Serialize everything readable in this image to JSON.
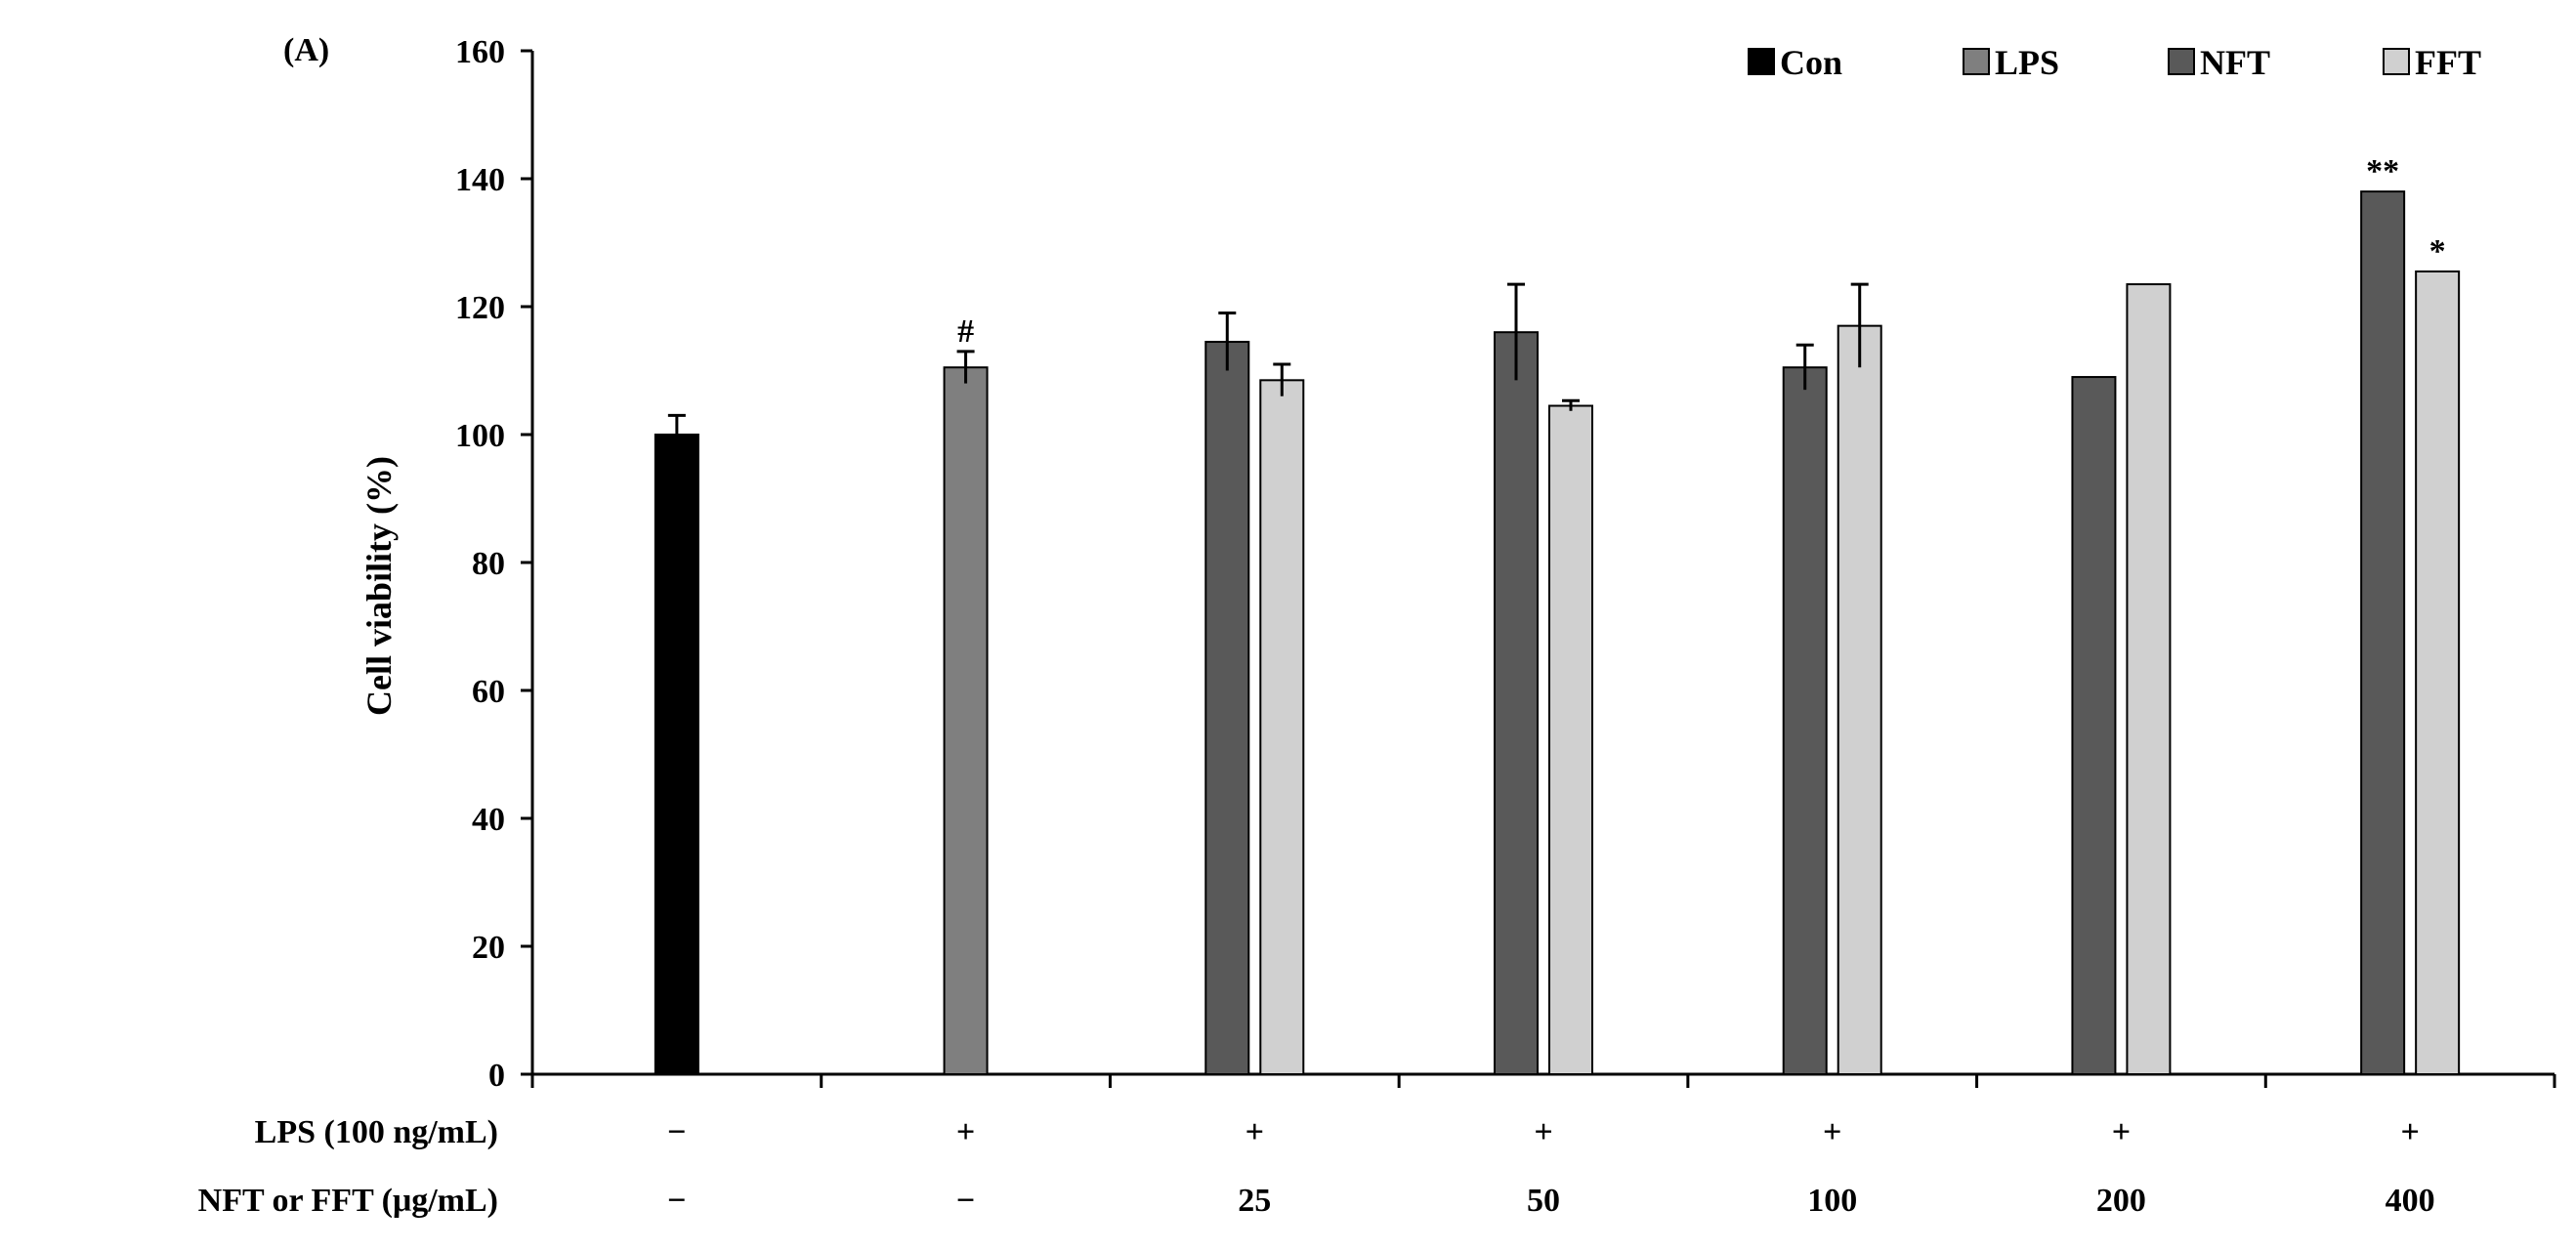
{
  "chart_data": {
    "type": "bar",
    "panel_label": "(A)",
    "title": "",
    "ylabel": "Cell viability (%)",
    "ylim": [
      0,
      160
    ],
    "yticks": [
      0,
      20,
      40,
      60,
      80,
      100,
      120,
      140,
      160
    ],
    "grid": false,
    "legend_position": "top-right",
    "groups": [
      {
        "lps": "−",
        "dose": "−"
      },
      {
        "lps": "+",
        "dose": "−"
      },
      {
        "lps": "+",
        "dose": "25"
      },
      {
        "lps": "+",
        "dose": "50"
      },
      {
        "lps": "+",
        "dose": "100"
      },
      {
        "lps": "+",
        "dose": "200"
      },
      {
        "lps": "+",
        "dose": "400"
      }
    ],
    "row_labels": {
      "lps": "LPS (100 ng/mL)",
      "dose": "NFT or FFT (μg/mL)"
    },
    "series": [
      {
        "name": "Con",
        "color": "#000000",
        "values": [
          100,
          null,
          null,
          null,
          null,
          null,
          null
        ],
        "errors": [
          3,
          null,
          null,
          null,
          null,
          null,
          null
        ],
        "annotations": [
          null,
          null,
          null,
          null,
          null,
          null,
          null
        ]
      },
      {
        "name": "LPS",
        "color": "#7f7f7f",
        "values": [
          null,
          110.5,
          null,
          null,
          null,
          null,
          null
        ],
        "errors": [
          null,
          2.5,
          null,
          null,
          null,
          null,
          null
        ],
        "annotations": [
          null,
          "#",
          null,
          null,
          null,
          null,
          null
        ]
      },
      {
        "name": "NFT",
        "color": "#595959",
        "values": [
          null,
          null,
          114.5,
          116,
          110.5,
          109,
          138
        ],
        "errors": [
          null,
          null,
          4.5,
          7.5,
          3.5,
          0,
          0
        ],
        "annotations": [
          null,
          null,
          null,
          null,
          null,
          null,
          "**"
        ]
      },
      {
        "name": "FFT",
        "color": "#d0d0d0",
        "values": [
          null,
          null,
          108.5,
          104.5,
          117,
          123.5,
          125.5
        ],
        "errors": [
          null,
          null,
          2.5,
          0.8,
          6.5,
          0,
          0
        ],
        "annotations": [
          null,
          null,
          null,
          null,
          null,
          null,
          "*"
        ]
      }
    ]
  }
}
